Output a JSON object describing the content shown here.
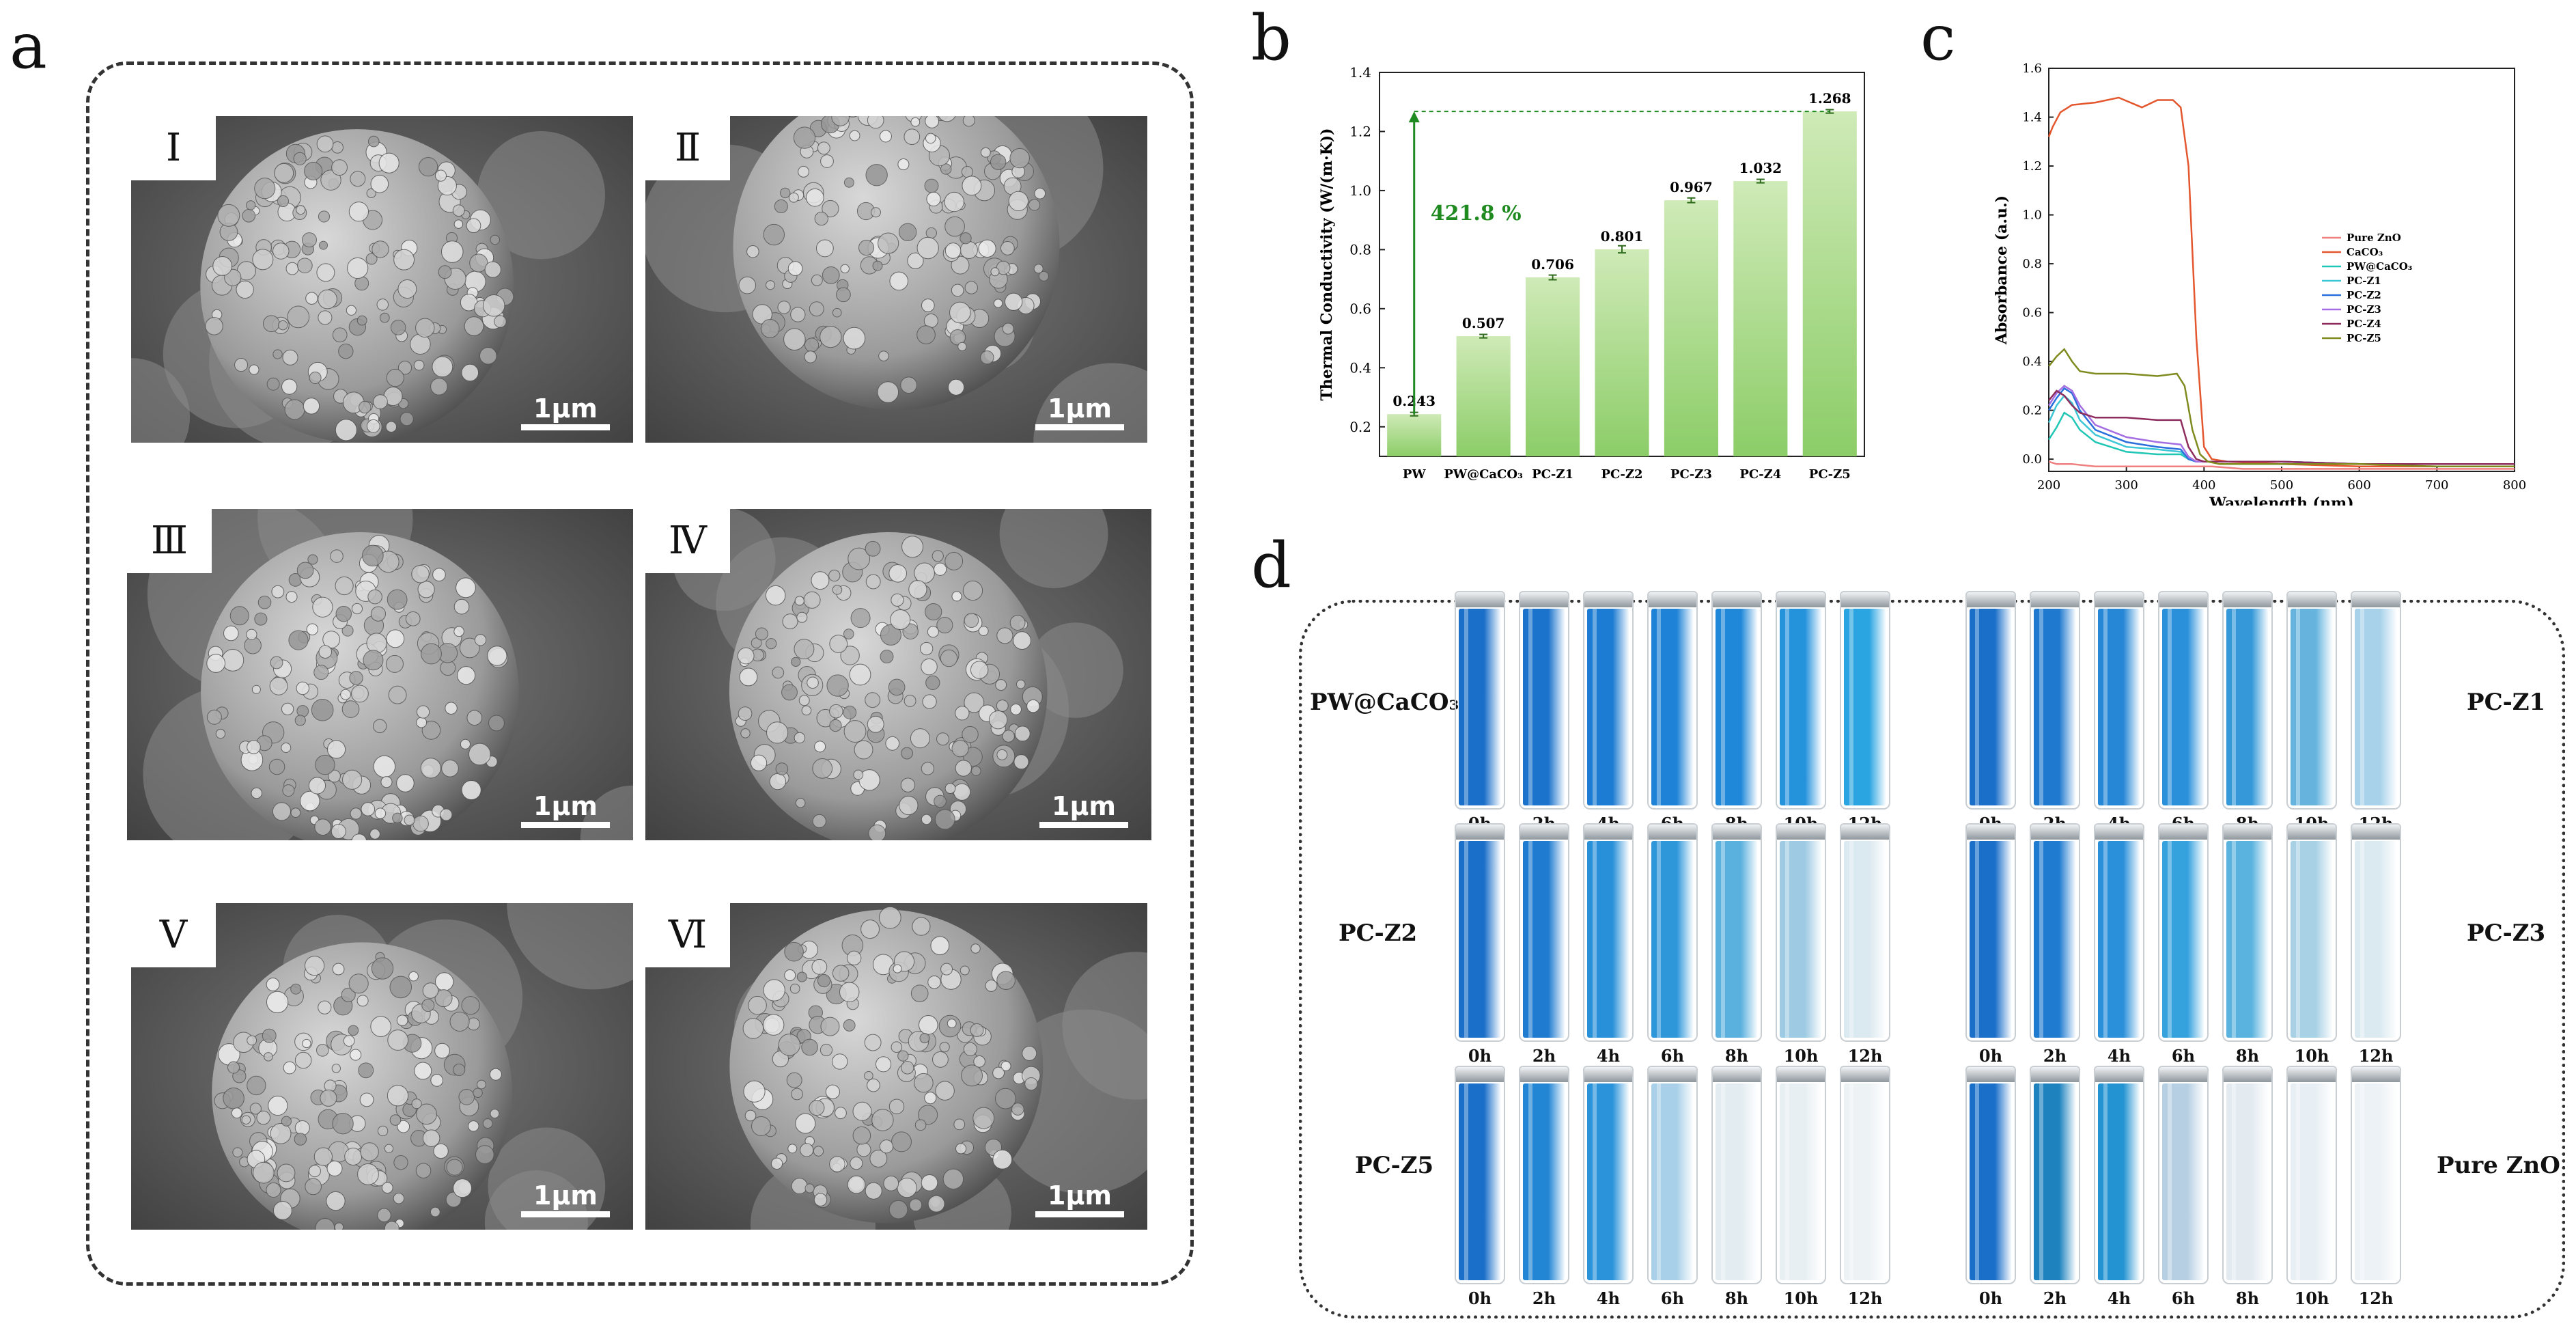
{
  "panel_letters": {
    "a": "a",
    "b": "b",
    "c": "c",
    "d": "d"
  },
  "sem_panels": [
    {
      "label": "Ⅰ",
      "scale": "1μm"
    },
    {
      "label": "Ⅱ",
      "scale": "1μm"
    },
    {
      "label": "Ⅲ",
      "scale": "1μm"
    },
    {
      "label": "Ⅳ",
      "scale": "1μm"
    },
    {
      "label": "Ⅴ",
      "scale": "1μm"
    },
    {
      "label": "Ⅵ",
      "scale": "1μm"
    }
  ],
  "chart_data": [
    {
      "type": "bar",
      "ylabel": "Thermal Conductivity (W/(m·K))",
      "xlabel": "",
      "categories": [
        "PW",
        "PW@CaCO3",
        "PC-Z1",
        "PC-Z2",
        "PC-Z3",
        "PC-Z4",
        "PC-Z5"
      ],
      "category_display": [
        "PW",
        "PW@CaCO₃",
        "PC-Z1",
        "PC-Z2",
        "PC-Z3",
        "PC-Z4",
        "PC-Z5"
      ],
      "values": [
        0.243,
        0.507,
        0.706,
        0.801,
        0.967,
        1.032,
        1.268
      ],
      "errors": [
        0.006,
        0.006,
        0.008,
        0.012,
        0.008,
        0.006,
        0.006
      ],
      "value_labels": [
        "0.243",
        "0.507",
        "0.706",
        "0.801",
        "0.967",
        "1.032",
        "1.268"
      ],
      "ylim": [
        0.1,
        1.4
      ],
      "yticks": [
        0.2,
        0.4,
        0.6,
        0.8,
        1.0,
        1.2,
        1.4
      ],
      "ytick_labels": [
        "0.2",
        "0.4",
        "0.6",
        "0.8",
        "1.0",
        "1.2",
        "1.4"
      ],
      "annotation": "421.8 %",
      "colors": {
        "bar_top": "#cfeab7",
        "bar_bottom": "#8ccd68",
        "annotation": "#1f8a20",
        "error": "#2e6b1c"
      }
    },
    {
      "type": "line",
      "xlabel": "Wavelength (nm)",
      "ylabel": "Absorbance (a.u.)",
      "xlim": [
        200,
        800
      ],
      "ylim": [
        -0.05,
        1.6
      ],
      "xticks": [
        200,
        300,
        400,
        500,
        600,
        700,
        800
      ],
      "xtick_labels": [
        "200",
        "300",
        "400",
        "500",
        "600",
        "700",
        "800"
      ],
      "yticks": [
        0.0,
        0.2,
        0.4,
        0.6,
        0.8,
        1.0,
        1.2,
        1.4,
        1.6
      ],
      "ytick_labels": [
        "0.0",
        "0.2",
        "0.4",
        "0.6",
        "0.8",
        "1.0",
        "1.2",
        "1.4",
        "1.6"
      ],
      "legend_position": "right",
      "series": [
        {
          "name": "Pure ZnO",
          "legend": "Pure ZnO",
          "color": "#f08080",
          "x": [
            200,
            210,
            230,
            260,
            300,
            340,
            365,
            375,
            385,
            395,
            410,
            450,
            500,
            600,
            700,
            800
          ],
          "y": [
            -0.01,
            -0.02,
            -0.02,
            -0.03,
            -0.03,
            -0.03,
            -0.03,
            -0.03,
            -0.03,
            -0.03,
            -0.03,
            -0.04,
            -0.04,
            -0.04,
            -0.04,
            -0.04
          ]
        },
        {
          "name": "CaCO3",
          "legend": "CaCO₃",
          "color": "#e4572e",
          "x": [
            200,
            205,
            215,
            230,
            260,
            290,
            320,
            340,
            360,
            370,
            380,
            390,
            400,
            410,
            430,
            500,
            600,
            700,
            800
          ],
          "y": [
            1.32,
            1.36,
            1.42,
            1.45,
            1.46,
            1.48,
            1.44,
            1.47,
            1.47,
            1.44,
            1.2,
            0.5,
            0.05,
            0.0,
            -0.01,
            -0.02,
            -0.03,
            -0.03,
            -0.03
          ]
        },
        {
          "name": "PW@CaCO3",
          "legend": "PW@CaCO₃",
          "color": "#21c7b5",
          "x": [
            200,
            210,
            220,
            230,
            240,
            260,
            300,
            340,
            370,
            380,
            390,
            400,
            450,
            500,
            600,
            700,
            800
          ],
          "y": [
            0.08,
            0.13,
            0.19,
            0.17,
            0.12,
            0.07,
            0.03,
            0.02,
            0.02,
            0.0,
            -0.01,
            -0.01,
            -0.01,
            -0.01,
            -0.02,
            -0.02,
            -0.02
          ]
        },
        {
          "name": "PC-Z1",
          "legend": "PC-Z1",
          "color": "#3cc6d6",
          "x": [
            200,
            210,
            220,
            230,
            240,
            260,
            300,
            340,
            370,
            380,
            390,
            400,
            450,
            500,
            600,
            700,
            800
          ],
          "y": [
            0.15,
            0.22,
            0.26,
            0.23,
            0.16,
            0.1,
            0.05,
            0.04,
            0.03,
            0.0,
            -0.01,
            -0.01,
            -0.01,
            -0.01,
            -0.02,
            -0.02,
            -0.02
          ]
        },
        {
          "name": "PC-Z2",
          "legend": "PC-Z2",
          "color": "#2a6fdb",
          "x": [
            200,
            210,
            220,
            230,
            240,
            260,
            300,
            340,
            370,
            380,
            390,
            400,
            450,
            500,
            600,
            700,
            800
          ],
          "y": [
            0.2,
            0.25,
            0.29,
            0.27,
            0.2,
            0.12,
            0.07,
            0.05,
            0.04,
            0.0,
            -0.01,
            -0.01,
            -0.01,
            -0.01,
            -0.02,
            -0.02,
            -0.02
          ]
        },
        {
          "name": "PC-Z3",
          "legend": "PC-Z3",
          "color": "#a56de2",
          "x": [
            200,
            210,
            220,
            230,
            240,
            260,
            300,
            340,
            370,
            380,
            390,
            400,
            450,
            500,
            600,
            700,
            800
          ],
          "y": [
            0.22,
            0.27,
            0.3,
            0.28,
            0.22,
            0.14,
            0.09,
            0.07,
            0.06,
            0.01,
            -0.01,
            -0.01,
            -0.01,
            -0.01,
            -0.02,
            -0.02,
            -0.02
          ]
        },
        {
          "name": "PC-Z4",
          "legend": "PC-Z4",
          "color": "#8e2c5e",
          "x": [
            200,
            210,
            220,
            230,
            240,
            260,
            300,
            340,
            370,
            380,
            390,
            400,
            450,
            500,
            600,
            700,
            800
          ],
          "y": [
            0.24,
            0.28,
            0.26,
            0.22,
            0.19,
            0.17,
            0.17,
            0.16,
            0.16,
            0.05,
            0.0,
            -0.01,
            -0.01,
            -0.01,
            -0.02,
            -0.02,
            -0.02
          ]
        },
        {
          "name": "PC-Z5",
          "legend": "PC-Z5",
          "color": "#7f8b1f",
          "x": [
            200,
            210,
            220,
            230,
            240,
            260,
            300,
            340,
            365,
            375,
            385,
            395,
            405,
            420,
            450,
            500,
            600,
            700,
            800
          ],
          "y": [
            0.38,
            0.42,
            0.45,
            0.4,
            0.36,
            0.35,
            0.35,
            0.34,
            0.35,
            0.3,
            0.12,
            0.02,
            -0.01,
            -0.02,
            -0.02,
            -0.02,
            -0.02,
            -0.03,
            -0.03
          ]
        }
      ]
    }
  ],
  "vial_panel": {
    "time_labels": [
      "0h",
      "2h",
      "4h",
      "6h",
      "8h",
      "10h",
      "12h"
    ],
    "groups": [
      {
        "name": "PW@CaCO₃",
        "colors": [
          "#1a6fc9",
          "#1b73cc",
          "#1c7bd2",
          "#1e82d6",
          "#2088d8",
          "#2592dc",
          "#2ba5e2"
        ]
      },
      {
        "name": "PC-Z1",
        "colors": [
          "#1a6fc9",
          "#1f79cf",
          "#2587d6",
          "#2a90da",
          "#3599d9",
          "#66b4de",
          "#a8d2ea"
        ]
      },
      {
        "name": "PC-Z2",
        "colors": [
          "#1a6fc9",
          "#1e7bd0",
          "#2890d8",
          "#2d97da",
          "#5bb1de",
          "#9ecbe3",
          "#dbe9f0"
        ]
      },
      {
        "name": "PC-Z3",
        "colors": [
          "#1a6fc9",
          "#1f7bd0",
          "#2a90d9",
          "#35a2de",
          "#5ab3de",
          "#a9d1e6",
          "#dbeaf1"
        ]
      },
      {
        "name": "PC-Z5",
        "colors": [
          "#1a6fc9",
          "#2386d4",
          "#2a93d9",
          "#a8d0e8",
          "#e2ecf1",
          "#e8eff3",
          "#edf2f5"
        ]
      },
      {
        "name": "Pure ZnO",
        "colors": [
          "#1a6fc9",
          "#1d82be",
          "#2393d1",
          "#b7cfe3",
          "#e3ebf1",
          "#e8eff4",
          "#edf2f6"
        ]
      }
    ]
  }
}
